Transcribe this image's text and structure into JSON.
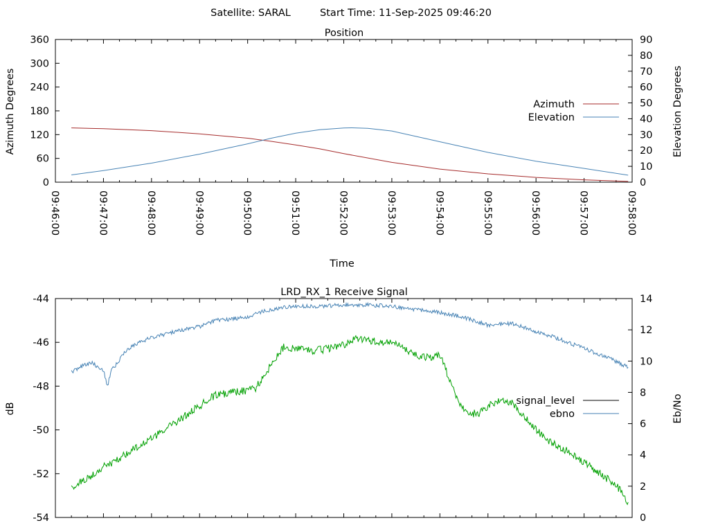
{
  "header": {
    "satellite": "Satellite: SARAL",
    "start_time": "Start Time: 11-Sep-2025 09:46:20"
  },
  "chart_data": [
    {
      "type": "line",
      "title": "Position",
      "xlabel": "Time",
      "ylabel": "Azimuth Degrees",
      "y2label": "Elevation Degrees",
      "x_ticks": [
        "09:46:00",
        "09:47:00",
        "09:48:00",
        "09:49:00",
        "09:50:00",
        "09:51:00",
        "09:52:00",
        "09:53:00",
        "09:54:00",
        "09:55:00",
        "09:56:00",
        "09:57:00",
        "09:58:00"
      ],
      "xlim": [
        "09:46:00",
        "09:58:00"
      ],
      "ylim": [
        0,
        360
      ],
      "y_ticks": [
        "0",
        "60",
        "120",
        "180",
        "240",
        "300",
        "360"
      ],
      "y2lim": [
        0,
        90
      ],
      "y2_ticks": [
        "0",
        "10",
        "20",
        "30",
        "40",
        "50",
        "60",
        "70",
        "80",
        "90"
      ],
      "legend_position": "right",
      "series": [
        {
          "name": "Azimuth",
          "axis": "y",
          "color": "#a52a2a",
          "x": [
            "09:46:20",
            "09:47:00",
            "09:48:00",
            "09:49:00",
            "09:50:00",
            "09:50:30",
            "09:51:00",
            "09:51:30",
            "09:52:00",
            "09:53:00",
            "09:54:00",
            "09:55:00",
            "09:56:00",
            "09:57:00",
            "09:57:55"
          ],
          "y": [
            137,
            135,
            130,
            122,
            111,
            103,
            94,
            84,
            72,
            50,
            33,
            21,
            12,
            6,
            2
          ]
        },
        {
          "name": "Elevation",
          "axis": "y2",
          "color": "#4682b4",
          "x": [
            "09:46:20",
            "09:47:00",
            "09:48:00",
            "09:49:00",
            "09:50:00",
            "09:50:30",
            "09:51:00",
            "09:51:30",
            "09:52:00",
            "09:52:10",
            "09:52:30",
            "09:53:00",
            "09:54:00",
            "09:55:00",
            "09:56:00",
            "09:57:00",
            "09:57:55"
          ],
          "y": [
            4.6,
            7.3,
            12,
            17.7,
            24.2,
            27.8,
            30.9,
            33.1,
            34.2,
            34.3,
            34.0,
            32.3,
            25.5,
            18.8,
            13.2,
            8.7,
            4.4
          ]
        }
      ]
    },
    {
      "type": "line",
      "title": "LRD_RX_1 Receive Signal",
      "ylabel": "dB",
      "y2label": "Eb/No",
      "xlim": [
        "09:46:00",
        "09:58:00"
      ],
      "ylim": [
        -54,
        -44
      ],
      "y_ticks": [
        "-54",
        "-52",
        "-50",
        "-48",
        "-46",
        "-44"
      ],
      "y2lim": [
        0,
        14
      ],
      "y2_ticks": [
        "0",
        "2",
        "4",
        "6",
        "8",
        "10",
        "12",
        "14"
      ],
      "legend_position": "right",
      "series": [
        {
          "name": "signal_level",
          "axis": "y",
          "color": "#000000",
          "x": [],
          "y": []
        },
        {
          "name": "ebno",
          "axis": "y2",
          "color": "#4682b4",
          "x": [
            "09:46:20",
            "09:46:30",
            "09:46:45",
            "09:47:00",
            "09:47:05",
            "09:47:10",
            "09:47:15",
            "09:47:25",
            "09:47:40",
            "09:48:00",
            "09:48:30",
            "09:49:00",
            "09:49:20",
            "09:49:40",
            "09:50:00",
            "09:50:20",
            "09:50:40",
            "09:51:00",
            "09:51:30",
            "09:52:00",
            "09:52:30",
            "09:53:00",
            "09:53:30",
            "09:54:00",
            "09:54:30",
            "09:55:00",
            "09:55:30",
            "09:56:00",
            "09:56:30",
            "09:57:00",
            "09:57:30",
            "09:57:55"
          ],
          "y": [
            9.3,
            9.6,
            9.9,
            9.4,
            8.4,
            9.5,
            9.7,
            10.5,
            11.1,
            11.5,
            11.9,
            12.2,
            12.6,
            12.7,
            12.8,
            13.2,
            13.4,
            13.5,
            13.5,
            13.6,
            13.6,
            13.5,
            13.3,
            13.1,
            12.8,
            12.3,
            12.4,
            11.9,
            11.4,
            10.8,
            10.2,
            9.6
          ]
        },
        {
          "name": "",
          "axis": "y",
          "color": "#00a000",
          "x": [
            "09:46:20",
            "09:46:40",
            "09:47:00",
            "09:47:20",
            "09:47:40",
            "09:48:00",
            "09:48:20",
            "09:48:40",
            "09:49:00",
            "09:49:20",
            "09:49:40",
            "09:50:00",
            "09:50:10",
            "09:50:30",
            "09:50:45",
            "09:51:00",
            "09:51:20",
            "09:51:40",
            "09:52:00",
            "09:52:15",
            "09:52:30",
            "09:52:45",
            "09:53:00",
            "09:53:20",
            "09:53:40",
            "09:54:00",
            "09:54:10",
            "09:54:20",
            "09:54:35",
            "09:54:50",
            "09:55:00",
            "09:55:15",
            "09:55:30",
            "09:55:45",
            "09:56:00",
            "09:56:20",
            "09:56:40",
            "09:57:00",
            "09:57:20",
            "09:57:40",
            "09:57:55"
          ],
          "y": [
            -52.6,
            -52.2,
            -51.7,
            -51.3,
            -50.8,
            -50.4,
            -49.9,
            -49.4,
            -48.9,
            -48.4,
            -48.3,
            -48.2,
            -48.1,
            -47.0,
            -46.2,
            -46.3,
            -46.4,
            -46.3,
            -46.1,
            -45.8,
            -45.9,
            -46.0,
            -46.0,
            -46.4,
            -46.7,
            -46.6,
            -47.5,
            -48.5,
            -49.3,
            -49.2,
            -48.9,
            -48.6,
            -48.8,
            -49.4,
            -50.0,
            -50.6,
            -51.0,
            -51.5,
            -52.0,
            -52.5,
            -53.3
          ]
        }
      ]
    }
  ]
}
